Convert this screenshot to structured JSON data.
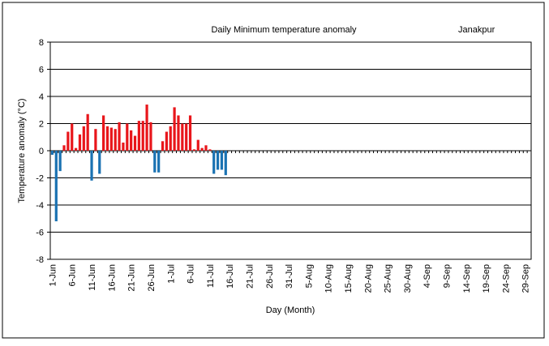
{
  "chart_data": {
    "type": "bar",
    "title": "Daily Minimum temperature anomaly",
    "annotation": "Janakpur",
    "y_label": "Temperature  anomaly (°C)",
    "x_label": "Day (Month)",
    "categories": [
      "1-Jun",
      null,
      null,
      null,
      null,
      "6-Jun",
      null,
      null,
      null,
      null,
      "11-Jun",
      null,
      null,
      null,
      null,
      "16-Jun",
      null,
      null,
      null,
      null,
      "21-Jun",
      null,
      null,
      null,
      null,
      "26-Jun",
      null,
      null,
      null,
      null,
      "1-Jul",
      null,
      null,
      null,
      null,
      "6-Jul",
      null,
      null,
      null,
      null,
      "11-Jul",
      null,
      null,
      null,
      null,
      "16-Jul",
      null,
      null,
      null,
      null,
      "21-Jul",
      null,
      null,
      null,
      null,
      "26-Jul",
      null,
      null,
      null,
      null,
      "31-Jul",
      null,
      null,
      null,
      null,
      "5-Aug",
      null,
      null,
      null,
      null,
      "10-Aug",
      null,
      null,
      null,
      null,
      "15-Aug",
      null,
      null,
      null,
      null,
      "20-Aug",
      null,
      null,
      null,
      null,
      "25-Aug",
      null,
      null,
      null,
      null,
      "30-Aug",
      null,
      null,
      null,
      null,
      "4-Sep",
      null,
      null,
      null,
      null,
      "9-Sep",
      null,
      null,
      null,
      null,
      "14-Sep",
      null,
      null,
      null,
      null,
      "19-Sep",
      null,
      null,
      null,
      null,
      "24-Sep",
      null,
      null,
      null,
      null,
      "29-Sep",
      null
    ],
    "values": [
      -0.3,
      -5.2,
      -1.5,
      0.4,
      1.4,
      2.0,
      0.2,
      1.2,
      1.8,
      2.7,
      -2.2,
      1.6,
      -1.7,
      2.6,
      1.8,
      1.7,
      1.6,
      2.1,
      0.6,
      2.0,
      1.5,
      1.1,
      2.2,
      2.2,
      3.4,
      2.1,
      -1.6,
      -1.6,
      0.7,
      1.4,
      1.8,
      3.2,
      2.6,
      2.0,
      2.0,
      2.6,
      0.1,
      0.8,
      0.2,
      0.4,
      0.1,
      -1.7,
      -1.4,
      -1.4,
      -1.8,
      null,
      null,
      null,
      null,
      null,
      null,
      null,
      null,
      null,
      null,
      null,
      null,
      null,
      null,
      null,
      null,
      null,
      null,
      null,
      null,
      null,
      null,
      null,
      null,
      null,
      null,
      null,
      null,
      null,
      null,
      null,
      null,
      null,
      null,
      null,
      null,
      null,
      null,
      null,
      null,
      null,
      null,
      null,
      null,
      null,
      null,
      null,
      null,
      null,
      null,
      null,
      null,
      null,
      null,
      null,
      null,
      null,
      null,
      null,
      null,
      null,
      null,
      null,
      null,
      null,
      null,
      null,
      null,
      null,
      null,
      null,
      null,
      null,
      null,
      null,
      null,
      null
    ],
    "positive_color": "#e8161b",
    "negative_color": "#1a72b2",
    "ylim": [
      -8,
      8
    ],
    "yticks": [
      -8,
      -6,
      -4,
      -2,
      0,
      2,
      4,
      6,
      8
    ],
    "grid": true
  }
}
